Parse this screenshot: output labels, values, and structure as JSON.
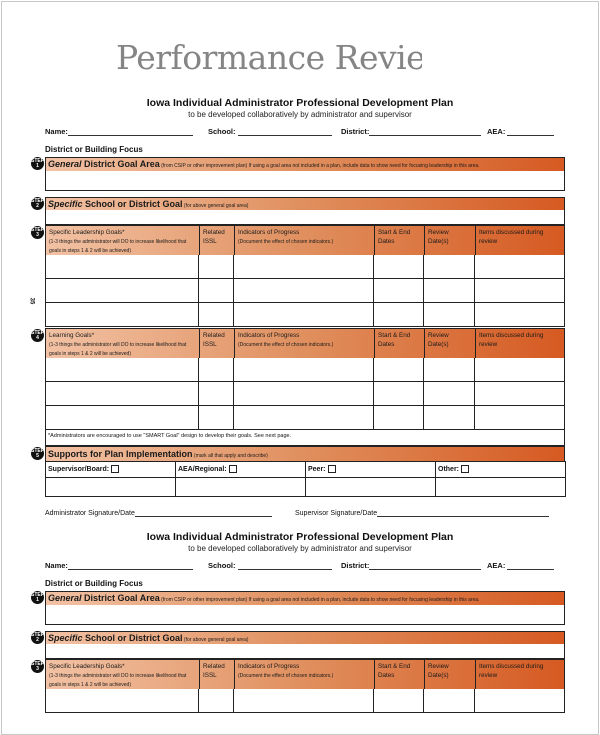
{
  "header_title": "Performance Reviews",
  "page_number": "35",
  "plan": {
    "title": "Iowa Individual Administrator Professional Development Plan",
    "subtitle": "to be developed collaboratively by administrator and supervisor",
    "fields": {
      "name": "Name:",
      "school": "School:",
      "district": "District:",
      "aea": "AEA:"
    },
    "focus_heading": "District or Building Focus",
    "step_word": "STEP",
    "step1": {
      "num": "1",
      "italic": "General",
      "bold": " District Goal Area",
      "note": " (from CSIP or other improvement plan) If using a goal area not included in a plan, include data to show need for focusing leadership in this area."
    },
    "step2": {
      "num": "2",
      "italic": "Specific",
      "bold": " School or District Goal",
      "note": " (for above general goal area)"
    },
    "step3": {
      "num": "3",
      "goal_title": "Specific Leadership Goals*",
      "goal_note": "(1-3 things the administrator will DO to increase likelihood that goals in steps 1 & 2 will be achieved)"
    },
    "step4": {
      "num": "4",
      "goal_title": "Learning Goals*",
      "goal_note": "(1-3 things the administrator will DO to increase likelihood that goals in steps 1 & 2 will be achieved)"
    },
    "columns": {
      "related": "Related ISSL",
      "indicators": "Indicators of Progress",
      "indicators_note": "(Document the effect of chosen indicators.)",
      "dates": "Start & End Dates",
      "review": "Review Date(s)",
      "items": "Items discussed during review"
    },
    "smart_note": "*Administrators are encouraged to use \"SMART Goal\" design to develop their goals. See next page.",
    "step5": {
      "num": "5",
      "bold": "Supports for Plan Implementation",
      "note": " (mark all that apply and describe)"
    },
    "supports": [
      "Supervisor/Board:",
      "AEA/Regional:",
      "Peer:",
      "Other:"
    ],
    "admin_signature": "Administrator Signature/Date",
    "supervisor_signature": "Supervisor Signature/Date"
  },
  "colors": {
    "header_gradient_start": "#f2c2a4",
    "header_gradient_end": "#d65a22",
    "title_gray": "#858585"
  }
}
